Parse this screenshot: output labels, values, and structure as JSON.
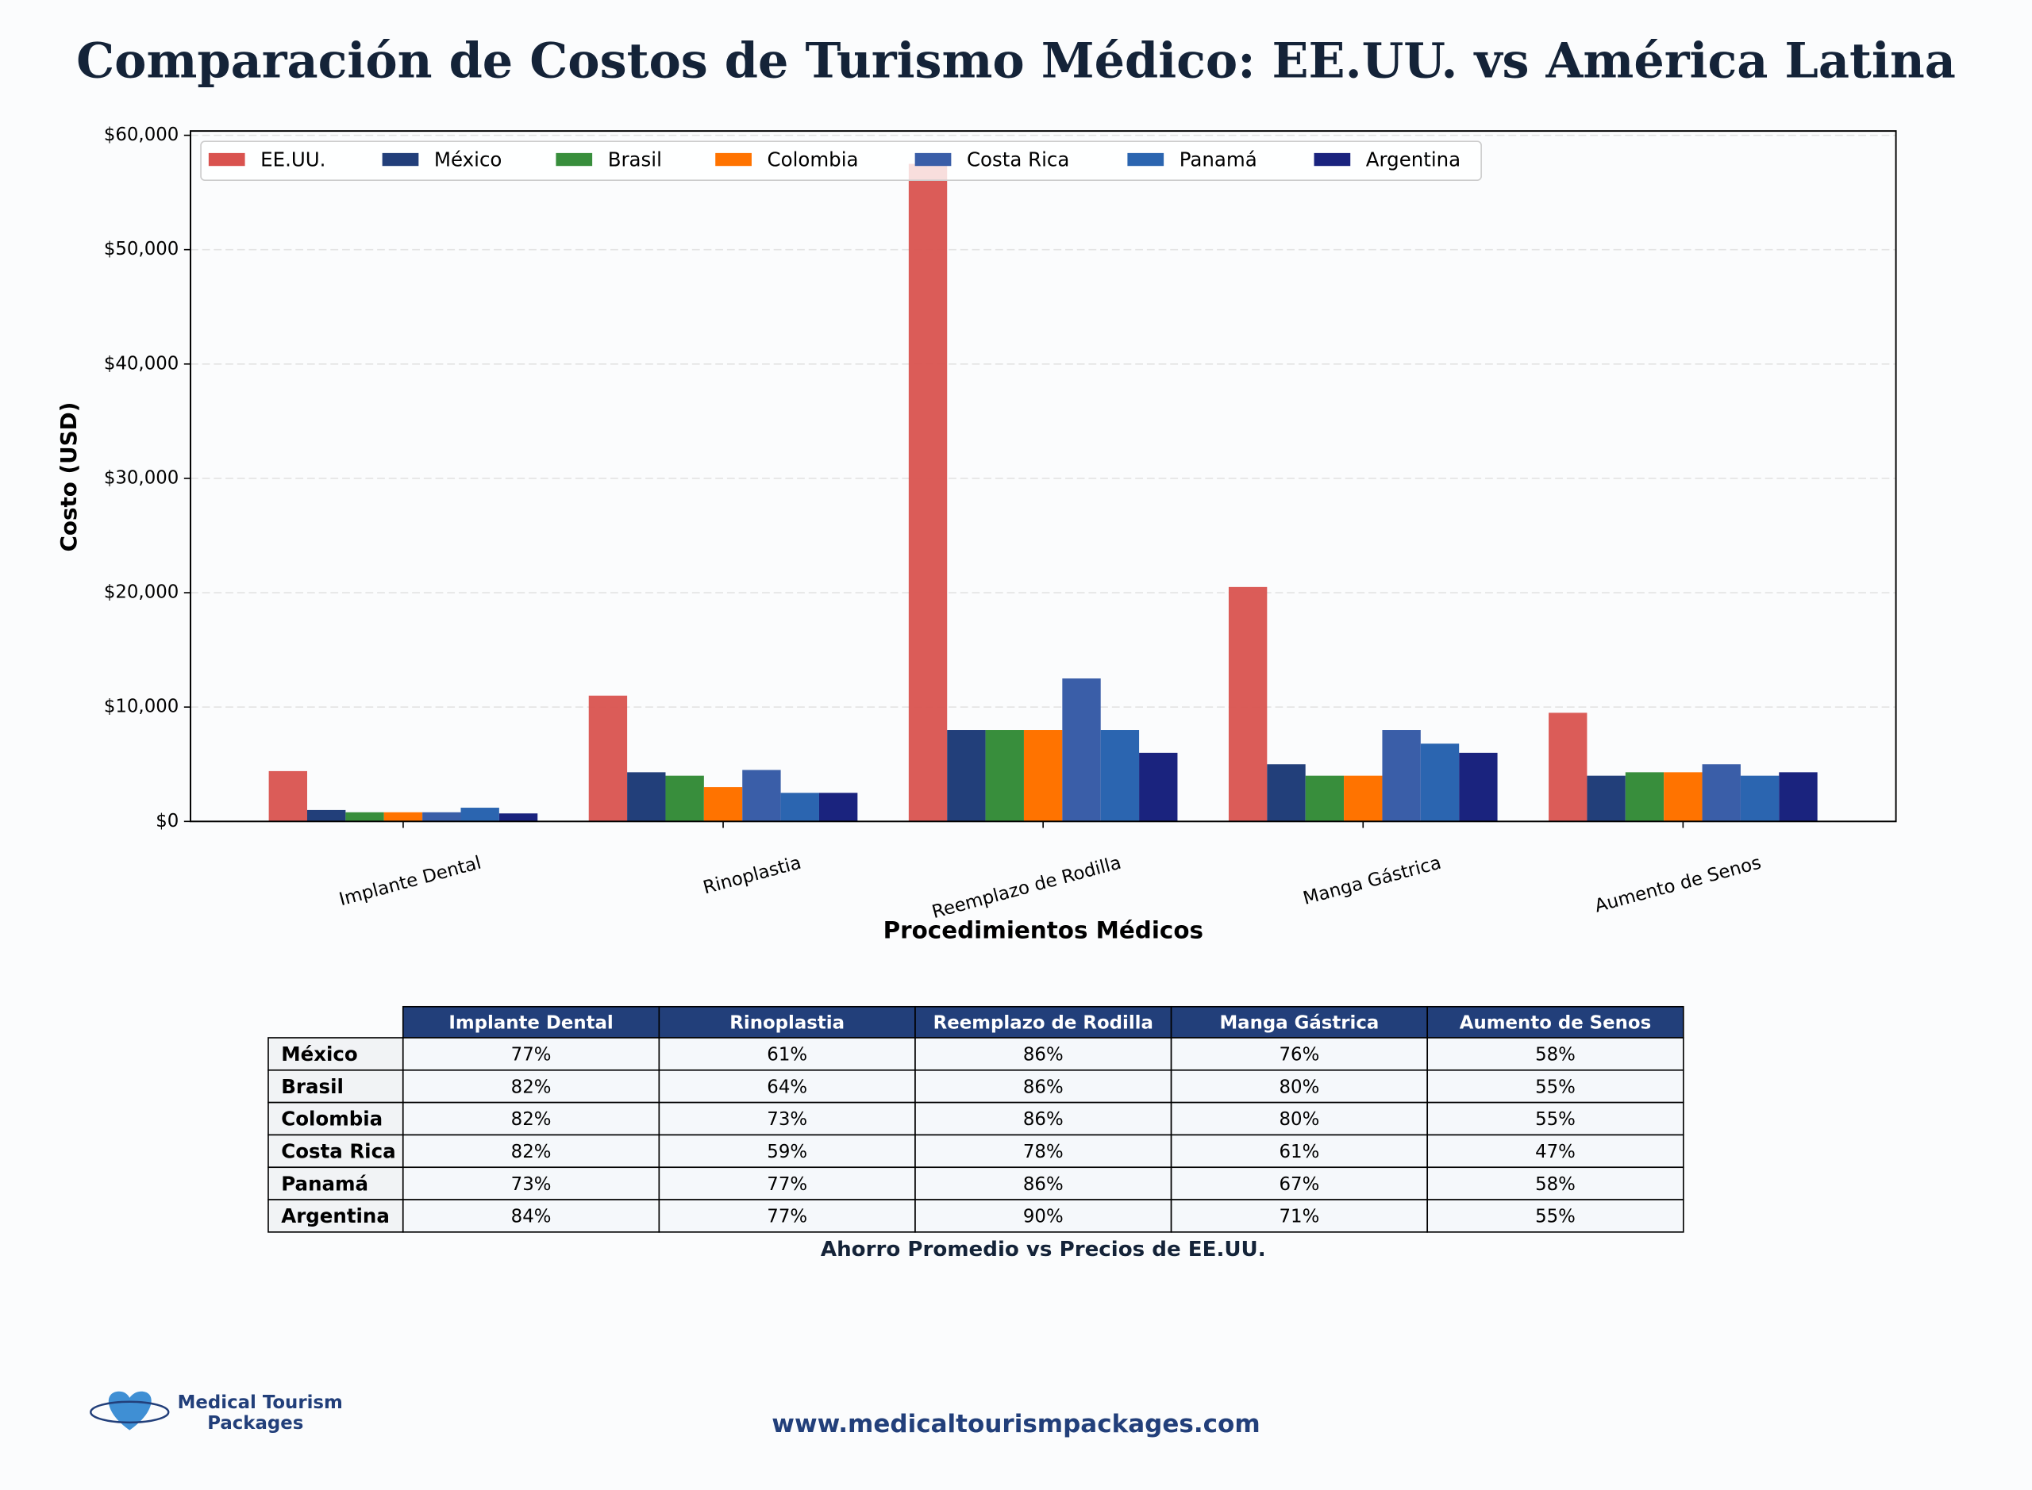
{
  "chart_data": {
    "type": "bar",
    "title": "Comparación de Costos de Turismo Médico: EE.UU. vs América Latina",
    "x_label": "Procedimientos Médicos",
    "y_label": "Costo (USD)",
    "categories": [
      "Implante Dental",
      "Rinoplastia",
      "Reemplazo de Rodilla",
      "Manga Gástrica",
      "Aumento de Senos"
    ],
    "series": [
      {
        "name": "EE.UU.",
        "color": "#d9534f",
        "values": [
          4400,
          11000,
          57500,
          20500,
          9500
        ]
      },
      {
        "name": "México",
        "color": "#223f7a",
        "values": [
          1000,
          4300,
          8000,
          5000,
          4000
        ]
      },
      {
        "name": "Brasil",
        "color": "#388e3c",
        "values": [
          800,
          4000,
          8000,
          4000,
          4300
        ]
      },
      {
        "name": "Colombia",
        "color": "#ff7300",
        "values": [
          800,
          3000,
          8000,
          4000,
          4300
        ]
      },
      {
        "name": "Costa Rica",
        "color": "#3a5ea8",
        "values": [
          800,
          4500,
          12500,
          8000,
          5000
        ]
      },
      {
        "name": "Panamá",
        "color": "#2b65b0",
        "values": [
          1200,
          2500,
          8000,
          6800,
          4000
        ]
      },
      {
        "name": "Argentina",
        "color": "#1a237e",
        "values": [
          700,
          2500,
          6000,
          6000,
          4300
        ]
      }
    ],
    "ylim": [
      0,
      60375
    ],
    "yticks": [
      {
        "value": 0,
        "label": "$0"
      },
      {
        "value": 10000,
        "label": "$10,000"
      },
      {
        "value": 20000,
        "label": "$20,000"
      },
      {
        "value": 30000,
        "label": "$30,000"
      },
      {
        "value": 40000,
        "label": "$40,000"
      },
      {
        "value": 50000,
        "label": "$50,000"
      },
      {
        "value": 60000,
        "label": "$60,000"
      }
    ],
    "grid": true,
    "legend": "upper left"
  },
  "table": {
    "header": [
      "Implante Dental",
      "Rinoplastia",
      "Reemplazo de Rodilla",
      "Manga Gástrica",
      "Aumento de Senos"
    ],
    "rows": [
      [
        "México",
        "77%",
        "61%",
        "86%",
        "76%",
        "58%"
      ],
      [
        "Brasil",
        "82%",
        "64%",
        "86%",
        "80%",
        "55%"
      ],
      [
        "Colombia",
        "82%",
        "73%",
        "86%",
        "80%",
        "55%"
      ],
      [
        "Costa Rica",
        "82%",
        "59%",
        "78%",
        "61%",
        "47%"
      ],
      [
        "Panamá",
        "73%",
        "77%",
        "86%",
        "67%",
        "58%"
      ],
      [
        "Argentina",
        "84%",
        "77%",
        "90%",
        "71%",
        "55%"
      ]
    ],
    "caption": "Ahorro Promedio vs Precios de EE.UU."
  },
  "footer": {
    "logo": [
      "Medical Tourism",
      "Packages"
    ],
    "url": "www.medicaltourismpackages.com"
  }
}
